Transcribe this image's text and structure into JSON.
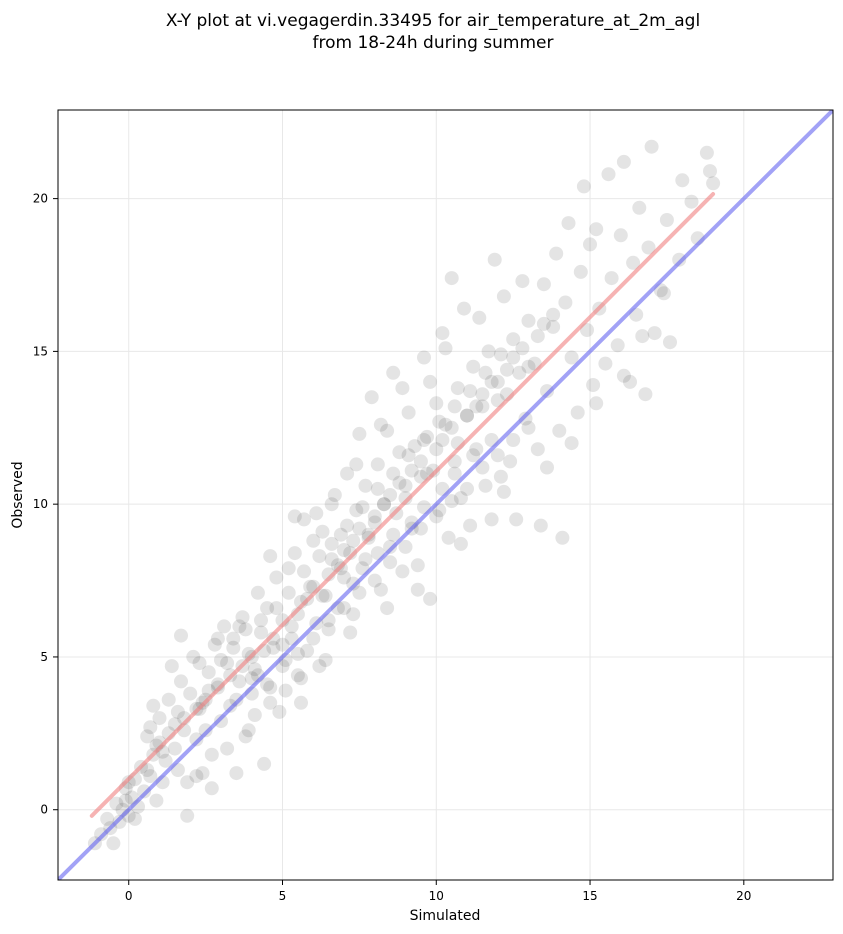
{
  "chart_data": {
    "type": "scatter",
    "title_lines": [
      "X-Y plot at vi.vegagerdin.33495 for air_temperature_at_2m_agl",
      "from 18-24h during summer"
    ],
    "xlabel": "Simulated",
    "ylabel": "Observed",
    "xlim": [
      -2.3,
      22.9
    ],
    "ylim": [
      -2.3,
      22.9
    ],
    "xticks": [
      0,
      5,
      10,
      15,
      20
    ],
    "yticks": [
      0,
      5,
      10,
      15,
      20
    ],
    "grid": true,
    "point_color": "#222222",
    "point_alpha": 0.12,
    "lines": [
      {
        "kind": "fit",
        "color": "#f08080",
        "x": [
          -1.2,
          19.0
        ],
        "y": [
          -0.2,
          20.15
        ]
      },
      {
        "kind": "identity",
        "color": "#6464f0",
        "x": [
          -2.3,
          22.9
        ],
        "y": [
          -2.3,
          22.9
        ]
      }
    ],
    "points": [
      [
        -1.1,
        -1.1
      ],
      [
        -0.9,
        -0.8
      ],
      [
        -0.6,
        -0.6
      ],
      [
        -0.5,
        -1.1
      ],
      [
        -0.3,
        -0.4
      ],
      [
        -0.2,
        0.0
      ],
      [
        0.0,
        -0.2
      ],
      [
        0.1,
        0.4
      ],
      [
        0.0,
        0.9
      ],
      [
        -0.1,
        0.7
      ],
      [
        0.2,
        1.0
      ],
      [
        0.4,
        1.4
      ],
      [
        0.3,
        0.1
      ],
      [
        0.6,
        1.3
      ],
      [
        0.8,
        1.8
      ],
      [
        0.9,
        0.3
      ],
      [
        1.0,
        2.2
      ],
      [
        0.7,
        2.7
      ],
      [
        1.0,
        3.0
      ],
      [
        0.8,
        3.4
      ],
      [
        0.6,
        2.4
      ],
      [
        1.2,
        1.6
      ],
      [
        1.1,
        0.9
      ],
      [
        1.4,
        4.7
      ],
      [
        1.5,
        2.8
      ],
      [
        1.6,
        3.2
      ],
      [
        1.8,
        2.6
      ],
      [
        1.9,
        -0.2
      ],
      [
        1.7,
        4.2
      ],
      [
        2.0,
        3.8
      ],
      [
        2.1,
        5.0
      ],
      [
        2.2,
        2.3
      ],
      [
        2.3,
        3.3
      ],
      [
        2.4,
        1.2
      ],
      [
        2.5,
        3.6
      ],
      [
        2.6,
        4.5
      ],
      [
        2.7,
        1.8
      ],
      [
        2.8,
        5.4
      ],
      [
        2.9,
        4.0
      ],
      [
        3.0,
        2.9
      ],
      [
        3.1,
        6.0
      ],
      [
        3.2,
        4.8
      ],
      [
        3.3,
        3.4
      ],
      [
        3.4,
        5.6
      ],
      [
        3.5,
        1.2
      ],
      [
        3.6,
        4.2
      ],
      [
        3.7,
        6.3
      ],
      [
        3.8,
        2.4
      ],
      [
        3.9,
        5.1
      ],
      [
        4.0,
        3.8
      ],
      [
        4.1,
        4.6
      ],
      [
        4.2,
        7.1
      ],
      [
        4.3,
        5.8
      ],
      [
        4.4,
        1.5
      ],
      [
        4.5,
        6.6
      ],
      [
        4.6,
        4.0
      ],
      [
        4.7,
        5.3
      ],
      [
        4.8,
        7.6
      ],
      [
        4.9,
        3.2
      ],
      [
        5.0,
        6.2
      ],
      [
        5.1,
        4.9
      ],
      [
        5.2,
        7.9
      ],
      [
        5.3,
        5.6
      ],
      [
        5.4,
        8.4
      ],
      [
        5.5,
        4.4
      ],
      [
        5.6,
        6.8
      ],
      [
        5.7,
        9.5
      ],
      [
        5.8,
        5.2
      ],
      [
        5.9,
        7.3
      ],
      [
        6.0,
        8.8
      ],
      [
        6.1,
        6.1
      ],
      [
        6.2,
        4.7
      ],
      [
        6.3,
        9.1
      ],
      [
        6.4,
        7.0
      ],
      [
        6.5,
        5.9
      ],
      [
        6.6,
        8.2
      ],
      [
        6.7,
        10.3
      ],
      [
        6.8,
        6.6
      ],
      [
        6.9,
        9.0
      ],
      [
        7.0,
        7.6
      ],
      [
        7.1,
        11.0
      ],
      [
        7.2,
        8.4
      ],
      [
        7.3,
        6.4
      ],
      [
        7.4,
        9.8
      ],
      [
        7.5,
        12.3
      ],
      [
        7.6,
        7.9
      ],
      [
        7.7,
        10.6
      ],
      [
        7.8,
        8.9
      ],
      [
        7.9,
        13.5
      ],
      [
        8.0,
        9.4
      ],
      [
        8.1,
        11.3
      ],
      [
        8.2,
        7.2
      ],
      [
        8.3,
        10.0
      ],
      [
        8.4,
        12.4
      ],
      [
        8.5,
        8.6
      ],
      [
        8.6,
        14.3
      ],
      [
        8.7,
        9.7
      ],
      [
        8.8,
        11.7
      ],
      [
        8.9,
        7.8
      ],
      [
        9.0,
        10.6
      ],
      [
        9.1,
        13.0
      ],
      [
        9.2,
        9.2
      ],
      [
        9.3,
        11.9
      ],
      [
        9.4,
        8.0
      ],
      [
        9.5,
        10.9
      ],
      [
        9.6,
        14.8
      ],
      [
        9.7,
        12.2
      ],
      [
        9.8,
        6.9
      ],
      [
        9.9,
        11.1
      ],
      [
        10.0,
        13.3
      ],
      [
        10.1,
        9.8
      ],
      [
        10.2,
        15.6
      ],
      [
        10.3,
        12.6
      ],
      [
        10.4,
        8.9
      ],
      [
        10.5,
        17.4
      ],
      [
        10.6,
        11.4
      ],
      [
        10.7,
        13.8
      ],
      [
        10.8,
        10.2
      ],
      [
        10.9,
        16.4
      ],
      [
        11.0,
        12.9
      ],
      [
        11.1,
        9.3
      ],
      [
        11.2,
        14.5
      ],
      [
        11.3,
        11.8
      ],
      [
        11.4,
        16.1
      ],
      [
        11.5,
        13.2
      ],
      [
        11.6,
        10.6
      ],
      [
        11.7,
        15.0
      ],
      [
        11.8,
        12.1
      ],
      [
        11.9,
        18.0
      ],
      [
        12.0,
        14.0
      ],
      [
        12.1,
        10.9
      ],
      [
        12.2,
        16.8
      ],
      [
        12.3,
        13.6
      ],
      [
        12.4,
        11.4
      ],
      [
        12.5,
        15.4
      ],
      [
        12.6,
        9.5
      ],
      [
        12.7,
        14.3
      ],
      [
        12.8,
        17.3
      ],
      [
        12.9,
        12.8
      ],
      [
        13.0,
        16.0
      ],
      [
        13.2,
        14.6
      ],
      [
        13.3,
        11.8
      ],
      [
        13.4,
        9.3
      ],
      [
        13.5,
        17.2
      ],
      [
        13.6,
        13.7
      ],
      [
        13.8,
        15.8
      ],
      [
        13.9,
        18.2
      ],
      [
        14.0,
        12.4
      ],
      [
        14.1,
        8.9
      ],
      [
        14.2,
        16.6
      ],
      [
        14.3,
        19.2
      ],
      [
        14.4,
        14.8
      ],
      [
        14.6,
        13.0
      ],
      [
        14.7,
        17.6
      ],
      [
        14.8,
        20.4
      ],
      [
        14.9,
        15.7
      ],
      [
        15.0,
        18.5
      ],
      [
        15.1,
        13.9
      ],
      [
        15.2,
        19.0
      ],
      [
        15.3,
        16.4
      ],
      [
        15.5,
        14.6
      ],
      [
        15.6,
        20.8
      ],
      [
        15.7,
        17.4
      ],
      [
        15.9,
        15.2
      ],
      [
        16.0,
        18.8
      ],
      [
        16.1,
        21.2
      ],
      [
        16.3,
        14.0
      ],
      [
        16.4,
        17.9
      ],
      [
        16.5,
        16.2
      ],
      [
        16.6,
        19.7
      ],
      [
        16.8,
        13.6
      ],
      [
        16.9,
        18.4
      ],
      [
        17.0,
        21.7
      ],
      [
        17.1,
        15.6
      ],
      [
        17.3,
        17.0
      ],
      [
        17.5,
        19.3
      ],
      [
        17.6,
        15.3
      ],
      [
        17.9,
        18.0
      ],
      [
        18.0,
        20.6
      ],
      [
        18.3,
        19.9
      ],
      [
        18.5,
        18.7
      ],
      [
        18.8,
        21.5
      ],
      [
        18.9,
        20.9
      ],
      [
        19.0,
        20.5
      ],
      [
        2.2,
        3.3
      ],
      [
        2.4,
        3.5
      ],
      [
        2.6,
        3.9
      ],
      [
        2.9,
        4.1
      ],
      [
        3.3,
        4.4
      ],
      [
        3.7,
        4.7
      ],
      [
        4.0,
        5.0
      ],
      [
        4.2,
        4.4
      ],
      [
        4.4,
        5.2
      ],
      [
        4.7,
        5.6
      ],
      [
        5.0,
        5.4
      ],
      [
        5.3,
        6.0
      ],
      [
        5.5,
        6.4
      ],
      [
        5.8,
        6.9
      ],
      [
        6.0,
        7.3
      ],
      [
        6.3,
        7.0
      ],
      [
        6.5,
        7.7
      ],
      [
        6.8,
        8.0
      ],
      [
        7.0,
        8.5
      ],
      [
        7.3,
        8.8
      ],
      [
        7.5,
        9.2
      ],
      [
        7.8,
        9.0
      ],
      [
        8.0,
        9.6
      ],
      [
        8.3,
        10.0
      ],
      [
        8.5,
        10.3
      ],
      [
        8.8,
        10.7
      ],
      [
        9.0,
        10.2
      ],
      [
        9.2,
        11.1
      ],
      [
        9.5,
        11.4
      ],
      [
        9.7,
        11.0
      ],
      [
        10.0,
        11.8
      ],
      [
        10.2,
        12.1
      ],
      [
        10.5,
        12.5
      ],
      [
        10.7,
        12.0
      ],
      [
        11.0,
        12.9
      ],
      [
        11.3,
        13.2
      ],
      [
        11.5,
        13.6
      ],
      [
        11.8,
        14.0
      ],
      [
        12.0,
        13.4
      ],
      [
        12.3,
        14.4
      ],
      [
        12.5,
        14.8
      ],
      [
        12.8,
        15.1
      ],
      [
        13.0,
        14.5
      ],
      [
        13.3,
        15.5
      ],
      [
        13.5,
        15.9
      ],
      [
        13.8,
        16.2
      ],
      [
        3.5,
        3.6
      ],
      [
        4.0,
        4.3
      ],
      [
        4.5,
        4.1
      ],
      [
        5.0,
        4.7
      ],
      [
        5.5,
        5.1
      ],
      [
        6.0,
        5.6
      ],
      [
        6.5,
        6.2
      ],
      [
        7.0,
        6.6
      ],
      [
        7.5,
        7.1
      ],
      [
        8.0,
        7.5
      ],
      [
        8.5,
        8.1
      ],
      [
        9.0,
        8.6
      ],
      [
        9.5,
        9.2
      ],
      [
        10.0,
        9.6
      ],
      [
        10.5,
        10.1
      ],
      [
        11.0,
        10.5
      ],
      [
        11.5,
        11.2
      ],
      [
        12.0,
        11.6
      ],
      [
        12.5,
        12.1
      ],
      [
        13.0,
        12.5
      ],
      [
        3.0,
        4.9
      ],
      [
        3.4,
        5.3
      ],
      [
        3.8,
        5.9
      ],
      [
        4.3,
        6.2
      ],
      [
        4.8,
        6.6
      ],
      [
        5.2,
        7.1
      ],
      [
        5.7,
        7.8
      ],
      [
        6.2,
        8.3
      ],
      [
        6.6,
        8.7
      ],
      [
        7.1,
        9.3
      ],
      [
        7.6,
        9.9
      ],
      [
        8.1,
        10.5
      ],
      [
        8.6,
        11.0
      ],
      [
        9.1,
        11.6
      ],
      [
        9.6,
        12.1
      ],
      [
        10.1,
        12.7
      ],
      [
        10.6,
        13.2
      ],
      [
        11.1,
        13.7
      ],
      [
        11.6,
        14.3
      ],
      [
        12.1,
        14.9
      ],
      [
        5.6,
        3.5
      ],
      [
        6.4,
        4.9
      ],
      [
        7.2,
        5.8
      ],
      [
        8.4,
        6.6
      ],
      [
        9.4,
        7.2
      ],
      [
        10.8,
        8.7
      ],
      [
        11.8,
        9.5
      ],
      [
        12.2,
        10.4
      ],
      [
        13.6,
        11.2
      ],
      [
        14.4,
        12.0
      ],
      [
        15.2,
        13.3
      ],
      [
        16.1,
        14.2
      ],
      [
        16.7,
        15.5
      ],
      [
        17.4,
        16.9
      ],
      [
        6.6,
        10.0
      ],
      [
        7.4,
        11.3
      ],
      [
        8.2,
        12.6
      ],
      [
        8.9,
        13.8
      ],
      [
        9.8,
        14.0
      ],
      [
        10.3,
        15.1
      ],
      [
        4.6,
        8.3
      ],
      [
        5.4,
        9.6
      ],
      [
        6.1,
        9.7
      ],
      [
        3.6,
        6.0
      ],
      [
        2.9,
        5.6
      ],
      [
        1.7,
        5.7
      ],
      [
        2.3,
        4.8
      ],
      [
        1.3,
        3.6
      ],
      [
        0.9,
        2.1
      ],
      [
        1.6,
        1.3
      ],
      [
        1.9,
        0.9
      ],
      [
        2.2,
        1.1
      ],
      [
        2.7,
        0.7
      ],
      [
        2.5,
        2.6
      ],
      [
        3.2,
        2.0
      ],
      [
        3.9,
        2.6
      ],
      [
        4.1,
        3.1
      ],
      [
        4.6,
        3.5
      ],
      [
        5.1,
        3.9
      ],
      [
        5.6,
        4.3
      ],
      [
        -0.7,
        -0.3
      ],
      [
        -0.4,
        0.2
      ],
      [
        -0.1,
        0.3
      ],
      [
        0.2,
        -0.3
      ],
      [
        0.5,
        0.6
      ],
      [
        0.7,
        1.1
      ],
      [
        1.1,
        1.9
      ],
      [
        1.3,
        2.5
      ],
      [
        1.5,
        2.0
      ],
      [
        1.8,
        3.0
      ],
      [
        6.9,
        7.9
      ],
      [
        7.3,
        7.4
      ],
      [
        7.7,
        8.2
      ],
      [
        8.1,
        8.4
      ],
      [
        8.6,
        9.0
      ],
      [
        9.2,
        9.4
      ],
      [
        9.6,
        9.9
      ],
      [
        10.2,
        10.5
      ],
      [
        10.6,
        11.0
      ],
      [
        11.2,
        11.6
      ]
    ]
  }
}
